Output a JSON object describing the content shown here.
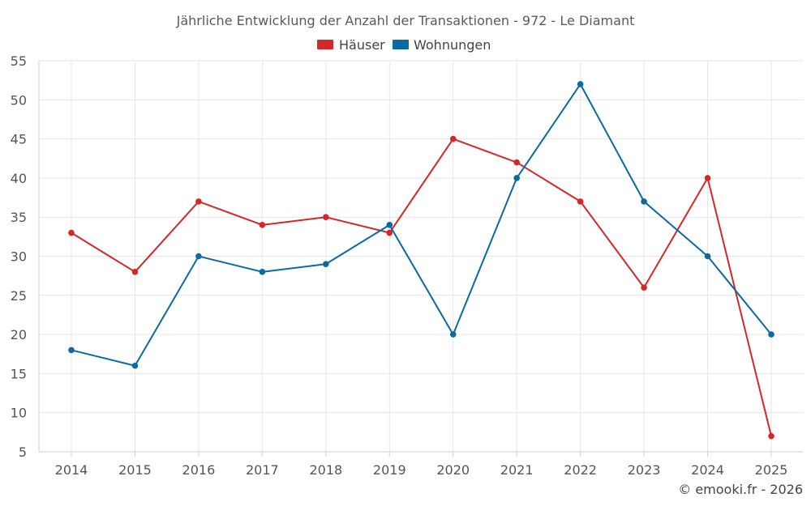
{
  "chart_data": {
    "type": "line",
    "title": "Jährliche Entwicklung der Anzahl der Transaktionen - 972 - Le Diamant",
    "categories": [
      "2014",
      "2015",
      "2016",
      "2017",
      "2018",
      "2019",
      "2020",
      "2021",
      "2022",
      "2023",
      "2024",
      "2025"
    ],
    "series": [
      {
        "name": "Häuser",
        "color": "#d62728",
        "values": [
          33,
          28,
          37,
          34,
          35,
          33,
          45,
          42,
          37,
          26,
          40,
          7
        ]
      },
      {
        "name": "Wohnungen",
        "color": "#0a6aa1",
        "values": [
          18,
          16,
          30,
          28,
          29,
          34,
          20,
          40,
          52,
          37,
          30,
          20
        ]
      }
    ],
    "ylim": [
      5,
      55
    ],
    "yticks": [
      5,
      10,
      15,
      20,
      25,
      30,
      35,
      40,
      45,
      50,
      55
    ],
    "grid": true,
    "legend": "top-center",
    "xlabel": "",
    "ylabel": ""
  },
  "credit": "© emooki.fr - 2026"
}
